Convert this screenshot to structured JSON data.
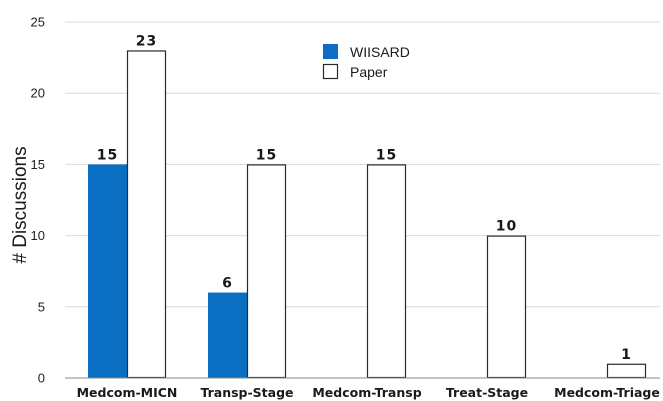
{
  "chart_data": {
    "type": "bar",
    "title": "",
    "xlabel": "",
    "ylabel": "# Discussions",
    "ylim": [
      0,
      25
    ],
    "yticks": [
      0,
      5,
      10,
      15,
      20,
      25
    ],
    "grid": true,
    "legend_position": "top-center",
    "categories": [
      "Medcom-MICN",
      "Transp-Stage",
      "Medcom-Transp",
      "Treat-Stage",
      "Medcom-Triage"
    ],
    "series": [
      {
        "name": "WIISARD",
        "color": "#0a6fc2",
        "values": [
          15,
          6,
          0,
          0,
          0
        ],
        "labels": [
          "15",
          "6",
          "",
          "",
          ""
        ]
      },
      {
        "name": "Paper",
        "color": "#ffffff",
        "values": [
          23,
          15,
          15,
          10,
          1
        ],
        "labels": [
          "23",
          "15",
          "15",
          "10",
          "1"
        ]
      }
    ]
  }
}
